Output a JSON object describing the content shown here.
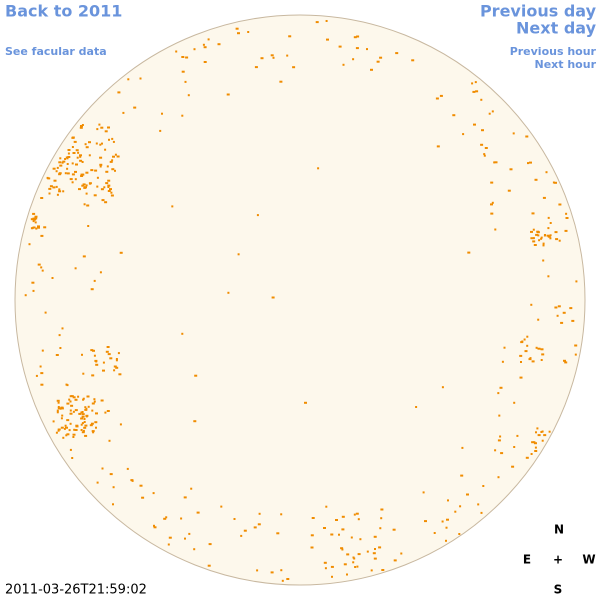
{
  "nav": {
    "back": "Back to 2011",
    "facular": "See facular data",
    "previous_day": "Previous day",
    "next_day": "Next day",
    "previous_hour": "Previous hour",
    "next_hour": "Next hour"
  },
  "compass": {
    "north": "N",
    "east": "E",
    "center": "+",
    "west": "W",
    "south": "S"
  },
  "timestamp": "2011-03-26T21:59:02"
}
